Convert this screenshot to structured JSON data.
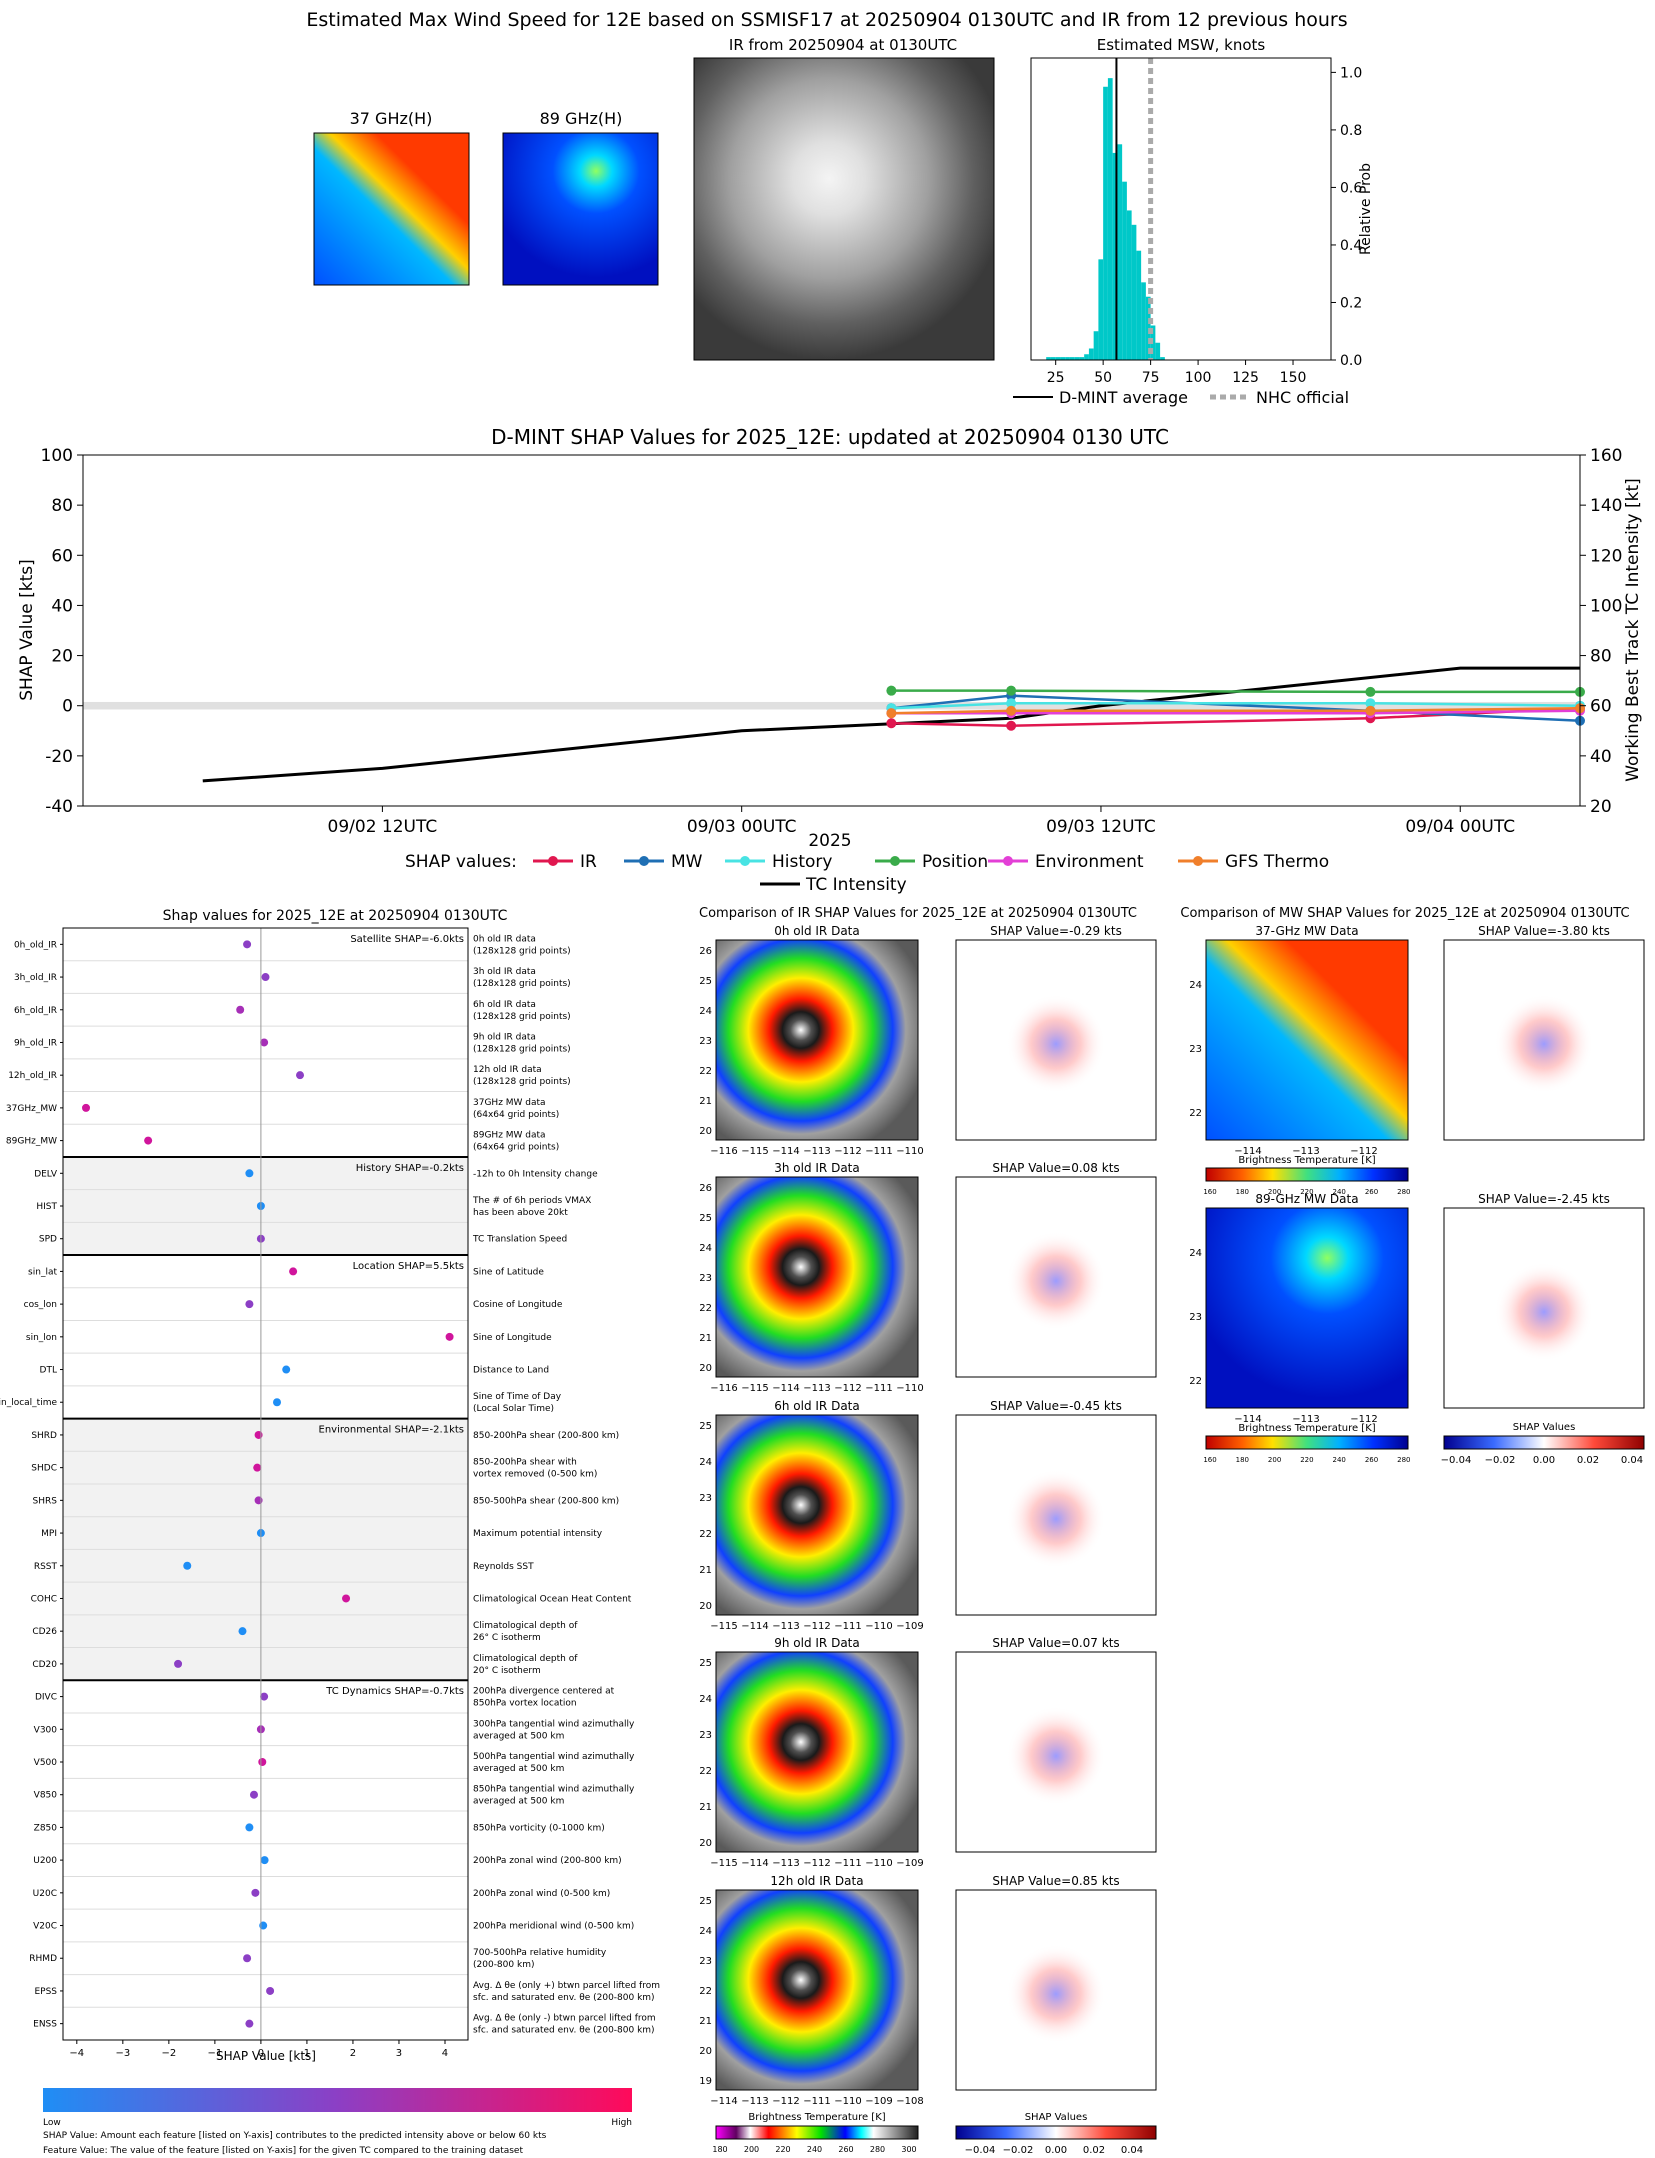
{
  "header": {
    "main_title": "Estimated Max Wind Speed for 12E based on SSMISF17 at 20250904 0130UTC and IR from 12 previous hours",
    "mw37_title": "37 GHz(H)",
    "mw89_title": "89 GHz(H)",
    "ir_title": "IR from 20250904 at 0130UTC"
  },
  "hist": {
    "title": "Estimated MSW, knots",
    "ylabel": "Relative Prob",
    "xticks": [
      "25",
      "50",
      "75",
      "100",
      "125",
      "150"
    ],
    "yticks": [
      "0.0",
      "0.2",
      "0.4",
      "0.6",
      "0.8",
      "1.0"
    ],
    "legend_avg": "D-MINT average",
    "legend_nhc": "NHC official",
    "bar_color": "#00c8c8"
  },
  "shap_ts": {
    "title": "D-MINT SHAP Values for 2025_12E: updated at 20250904 0130 UTC",
    "ylabel_left": "SHAP Value [kts]",
    "ylabel_right": "Working Best Track TC Intensity [kt]",
    "xlabel": "2025",
    "xticks": [
      "09/02 12UTC",
      "09/03 00UTC",
      "09/03 12UTC",
      "09/04 00UTC"
    ],
    "yticks_left": [
      "-40",
      "-20",
      "0",
      "20",
      "40",
      "60",
      "80",
      "100"
    ],
    "yticks_right": [
      "20",
      "40",
      "60",
      "80",
      "100",
      "120",
      "140",
      "160"
    ],
    "legend_label": "SHAP values:",
    "legend_tc": "TC Intensity"
  },
  "feat": {
    "title": "Shap values for 2025_12E at 20250904 0130UTC",
    "xlabel": "SHAP Value [kts]",
    "xticks": [
      "−4",
      "−3",
      "−2",
      "−1",
      "0",
      "1",
      "2",
      "3",
      "4"
    ],
    "colorbar_low": "Low",
    "colorbar_high": "High",
    "footnote1": "SHAP Value: Amount each feature [listed on Y-axis] contributes to the predicted intensity above or below 60 kts",
    "footnote2": "Feature Value: The value of the feature [listed on Y-axis] for the given TC compared to the training dataset"
  },
  "ir_panel": {
    "title": "Comparison of IR SHAP Values for 2025_12E at 20250904 0130UTC",
    "cbar_label": "Brightness Temperature [K]",
    "cbar_ticks": [
      "180",
      "200",
      "220",
      "240",
      "260",
      "280",
      "300"
    ],
    "shap_cbar_label": "SHAP Values",
    "shap_cbar_ticks": [
      "−0.04",
      "−0.02",
      "0.00",
      "0.02",
      "0.04"
    ],
    "rows": [
      {
        "title": "0h old IR Data",
        "shap": "SHAP Value=-0.29 kts",
        "xt": [
          "−116",
          "−115",
          "−114",
          "−113",
          "−112",
          "−111",
          "−110"
        ],
        "yt": [
          "26",
          "25",
          "24",
          "23",
          "22",
          "21",
          "20"
        ]
      },
      {
        "title": "3h old IR Data",
        "shap": "SHAP Value=0.08 kts",
        "xt": [
          "−116",
          "−115",
          "−114",
          "−113",
          "−112",
          "−111",
          "−110"
        ],
        "yt": [
          "26",
          "25",
          "24",
          "23",
          "22",
          "21",
          "20"
        ]
      },
      {
        "title": "6h old IR Data",
        "shap": "SHAP Value=-0.45 kts",
        "xt": [
          "−115",
          "−114",
          "−113",
          "−112",
          "−111",
          "−110",
          "−109"
        ],
        "yt": [
          "25",
          "24",
          "23",
          "22",
          "21",
          "20"
        ]
      },
      {
        "title": "9h old IR Data",
        "shap": "SHAP Value=0.07 kts",
        "xt": [
          "−115",
          "−114",
          "−113",
          "−112",
          "−111",
          "−110",
          "−109"
        ],
        "yt": [
          "25",
          "24",
          "23",
          "22",
          "21",
          "20"
        ]
      },
      {
        "title": "12h old IR Data",
        "shap": "SHAP Value=0.85 kts",
        "xt": [
          "−114",
          "−113",
          "−112",
          "−111",
          "−110",
          "−109",
          "−108"
        ],
        "yt": [
          "25",
          "24",
          "23",
          "22",
          "21",
          "20",
          "19"
        ]
      }
    ]
  },
  "mw_panel": {
    "title": "Comparison of MW SHAP Values for 2025_12E at 20250904 0130UTC",
    "cbar_label": "Brightness Temperature [K]",
    "cbar_ticks": [
      "160",
      "180",
      "200",
      "220",
      "240",
      "260",
      "280"
    ],
    "shap_cbar_label": "SHAP Values",
    "shap_cbar_ticks": [
      "−0.04",
      "−0.02",
      "0.00",
      "0.02",
      "0.04"
    ],
    "rows": [
      {
        "title": "37-GHz MW Data",
        "shap": "SHAP Value=-3.80 kts",
        "xt": [
          "−114",
          "−113",
          "−112"
        ],
        "yt": [
          "24",
          "23",
          "22"
        ]
      },
      {
        "title": "89-GHz MW Data",
        "shap": "SHAP Value=-2.45 kts",
        "xt": [
          "−114",
          "−113",
          "−112"
        ],
        "yt": [
          "24",
          "23",
          "22"
        ]
      }
    ]
  },
  "chart_data": [
    {
      "type": "bar",
      "title": "Estimated MSW, knots",
      "ylabel": "Relative Prob",
      "xlim": [
        12,
        170
      ],
      "ylim": [
        0,
        1.05
      ],
      "bin_width": 2.5,
      "bins": [
        [
          20,
          0.01
        ],
        [
          22.5,
          0.01
        ],
        [
          25,
          0.01
        ],
        [
          27.5,
          0.01
        ],
        [
          30,
          0.01
        ],
        [
          32.5,
          0.01
        ],
        [
          35,
          0.01
        ],
        [
          37.5,
          0.01
        ],
        [
          40,
          0.02
        ],
        [
          42.5,
          0.04
        ],
        [
          45,
          0.1
        ],
        [
          47.5,
          0.35
        ],
        [
          50,
          0.95
        ],
        [
          52.5,
          0.98
        ],
        [
          55,
          0.72
        ],
        [
          57.5,
          0.75
        ],
        [
          60,
          0.62
        ],
        [
          62.5,
          0.52
        ],
        [
          65,
          0.47
        ],
        [
          67.5,
          0.38
        ],
        [
          70,
          0.27
        ],
        [
          72.5,
          0.22
        ],
        [
          75,
          0.12
        ],
        [
          77.5,
          0.06
        ],
        [
          80,
          0.01
        ]
      ],
      "dmint_average": 57,
      "nhc_official": 75
    },
    {
      "type": "line",
      "title": "D-MINT SHAP Values for 2025_12E: updated at 20250904 0130 UTC",
      "x_unit": "hours after 09/02 12UTC",
      "ylim_left": [
        -40,
        100
      ],
      "ylim_right": [
        20,
        160
      ],
      "series": [
        {
          "name": "IR",
          "color": "#e0174f",
          "x": [
            17,
            21,
            33,
            40
          ],
          "y": [
            -7,
            -8,
            -5,
            -1
          ]
        },
        {
          "name": "MW",
          "color": "#1f6fb4",
          "x": [
            17,
            21,
            33,
            40
          ],
          "y": [
            -1,
            4,
            -2,
            -6
          ]
        },
        {
          "name": "History",
          "color": "#48e3e3",
          "x": [
            17,
            21,
            33,
            40
          ],
          "y": [
            -1,
            1,
            1,
            0
          ]
        },
        {
          "name": "Position",
          "color": "#3aab4a",
          "x": [
            17,
            21,
            33,
            40
          ],
          "y": [
            6,
            6,
            5.5,
            5.5
          ]
        },
        {
          "name": "Environment",
          "color": "#e33fd6",
          "x": [
            17,
            21,
            33,
            40
          ],
          "y": [
            -3,
            -3,
            -3,
            -2
          ]
        },
        {
          "name": "GFS Thermo",
          "color": "#f07f2b",
          "x": [
            17,
            21,
            33,
            40
          ],
          "y": [
            -3,
            -2,
            -2,
            -1
          ]
        }
      ],
      "tc_intensity": {
        "name": "TC Intensity",
        "color": "#000000",
        "x": [
          -6,
          0,
          12,
          21,
          24,
          36,
          39,
          40
        ],
        "y_right": [
          30,
          35,
          50,
          55,
          60,
          75,
          75,
          75
        ]
      }
    },
    {
      "type": "scatter",
      "title": "Shap values for 2025_12E at 20250904 0130UTC",
      "xlabel": "SHAP Value [kts]",
      "xlim": [
        -4.3,
        4.5
      ],
      "groups": [
        {
          "label": "Satellite SHAP=-6.0kts",
          "shaded": false,
          "rows": [
            {
              "name": "0h_old_IR",
              "desc": [
                "0h old IR data",
                "(128x128 grid points)"
              ],
              "value": -0.3,
              "color": "#8c3fc5"
            },
            {
              "name": "3h_old_IR",
              "desc": [
                "3h old IR data",
                "(128x128 grid points)"
              ],
              "value": 0.1,
              "color": "#8c3fc5"
            },
            {
              "name": "6h_old_IR",
              "desc": [
                "6h old IR data",
                "(128x128 grid points)"
              ],
              "value": -0.45,
              "color": "#a62fb7"
            },
            {
              "name": "9h_old_IR",
              "desc": [
                "9h old IR data",
                "(128x128 grid points)"
              ],
              "value": 0.07,
              "color": "#a62fb7"
            },
            {
              "name": "12h_old_IR",
              "desc": [
                "12h old IR data",
                "(128x128 grid points)"
              ],
              "value": 0.85,
              "color": "#8c3fc5"
            },
            {
              "name": "37GHz_MW",
              "desc": [
                "37GHz MW data",
                "(64x64 grid points)"
              ],
              "value": -3.8,
              "color": "#d0159c"
            },
            {
              "name": "89GHz_MW",
              "desc": [
                "89GHz MW data",
                "(64x64 grid points)"
              ],
              "value": -2.45,
              "color": "#d0159c"
            }
          ]
        },
        {
          "label": "History SHAP=-0.2kts",
          "shaded": true,
          "rows": [
            {
              "name": "DELV",
              "desc": [
                "-12h to 0h Intensity change"
              ],
              "value": -0.25,
              "color": "#1f8ef5"
            },
            {
              "name": "HIST",
              "desc": [
                "The # of 6h periods VMAX",
                "has been above 20kt"
              ],
              "value": 0.0,
              "color": "#1f8ef5"
            },
            {
              "name": "SPD",
              "desc": [
                "TC Translation Speed"
              ],
              "value": 0.0,
              "color": "#8c3fc5"
            }
          ]
        },
        {
          "label": "Location SHAP=5.5kts",
          "shaded": false,
          "rows": [
            {
              "name": "sin_lat",
              "desc": [
                "Sine of Latitude"
              ],
              "value": 0.7,
              "color": "#d0159c"
            },
            {
              "name": "cos_lon",
              "desc": [
                "Cosine of Longitude"
              ],
              "value": -0.25,
              "color": "#8c3fc5"
            },
            {
              "name": "sin_lon",
              "desc": [
                "Sine of Longitude"
              ],
              "value": 4.1,
              "color": "#d0159c"
            },
            {
              "name": "DTL",
              "desc": [
                "Distance to Land"
              ],
              "value": 0.55,
              "color": "#1f8ef5"
            },
            {
              "name": "sin_local_time",
              "desc": [
                "Sine of Time of Day",
                "(Local Solar Time)"
              ],
              "value": 0.35,
              "color": "#1f8ef5"
            }
          ]
        },
        {
          "label": "Environmental SHAP=-2.1kts",
          "shaded": true,
          "rows": [
            {
              "name": "SHRD",
              "desc": [
                "850-200hPa shear (200-800 km)"
              ],
              "value": -0.05,
              "color": "#d0159c"
            },
            {
              "name": "SHDC",
              "desc": [
                "850-200hPa shear with",
                "vortex removed (0-500 km)"
              ],
              "value": -0.08,
              "color": "#d0159c"
            },
            {
              "name": "SHRS",
              "desc": [
                "850-500hPa shear (200-800 km)"
              ],
              "value": -0.05,
              "color": "#a62fb7"
            },
            {
              "name": "MPI",
              "desc": [
                "Maximum potential intensity"
              ],
              "value": 0.0,
              "color": "#1f8ef5"
            },
            {
              "name": "RSST",
              "desc": [
                "Reynolds SST"
              ],
              "value": -1.6,
              "color": "#1f8ef5"
            },
            {
              "name": "COHC",
              "desc": [
                "Climatological Ocean Heat Content"
              ],
              "value": 1.85,
              "color": "#d0159c"
            },
            {
              "name": "CD26",
              "desc": [
                "Climatological depth of",
                "26° C isotherm"
              ],
              "value": -0.4,
              "color": "#1f8ef5"
            },
            {
              "name": "CD20",
              "desc": [
                "Climatological depth of",
                "20° C isotherm"
              ],
              "value": -1.8,
              "color": "#8c3fc5"
            }
          ]
        },
        {
          "label": "TC Dynamics SHAP=-0.7kts",
          "shaded": false,
          "rows": [
            {
              "name": "DIVC",
              "desc": [
                "200hPa divergence centered at",
                "850hPa vortex location"
              ],
              "value": 0.07,
              "color": "#8c3fc5"
            },
            {
              "name": "V300",
              "desc": [
                "300hPa tangential wind azimuthally",
                "averaged at 500 km"
              ],
              "value": 0.0,
              "color": "#a62fb7"
            },
            {
              "name": "V500",
              "desc": [
                "500hPa tangential wind azimuthally",
                "averaged at 500 km"
              ],
              "value": 0.03,
              "color": "#d0159c"
            },
            {
              "name": "V850",
              "desc": [
                "850hPa tangential wind azimuthally",
                "averaged at 500 km"
              ],
              "value": -0.15,
              "color": "#8c3fc5"
            },
            {
              "name": "Z850",
              "desc": [
                "850hPa vorticity (0-1000 km)"
              ],
              "value": -0.25,
              "color": "#1f8ef5"
            },
            {
              "name": "U200",
              "desc": [
                "200hPa zonal wind (200-800 km)"
              ],
              "value": 0.08,
              "color": "#1f8ef5"
            },
            {
              "name": "U20C",
              "desc": [
                "200hPa zonal wind (0-500 km)"
              ],
              "value": -0.12,
              "color": "#8c3fc5"
            },
            {
              "name": "V20C",
              "desc": [
                "200hPa meridional wind (0-500 km)"
              ],
              "value": 0.05,
              "color": "#1f8ef5"
            },
            {
              "name": "RHMD",
              "desc": [
                "700-500hPa relative humidity",
                "(200-800 km)"
              ],
              "value": -0.3,
              "color": "#8c3fc5"
            },
            {
              "name": "EPSS",
              "desc": [
                "Avg. Δ θe (only +) btwn parcel lifted from",
                "sfc. and saturated env. θe (200-800 km)"
              ],
              "value": 0.2,
              "color": "#8c3fc5"
            },
            {
              "name": "ENSS",
              "desc": [
                "Avg. Δ θe (only -) btwn parcel lifted from",
                "sfc. and saturated env. θe (200-800 km)"
              ],
              "value": -0.25,
              "color": "#8c3fc5"
            }
          ]
        }
      ]
    }
  ]
}
